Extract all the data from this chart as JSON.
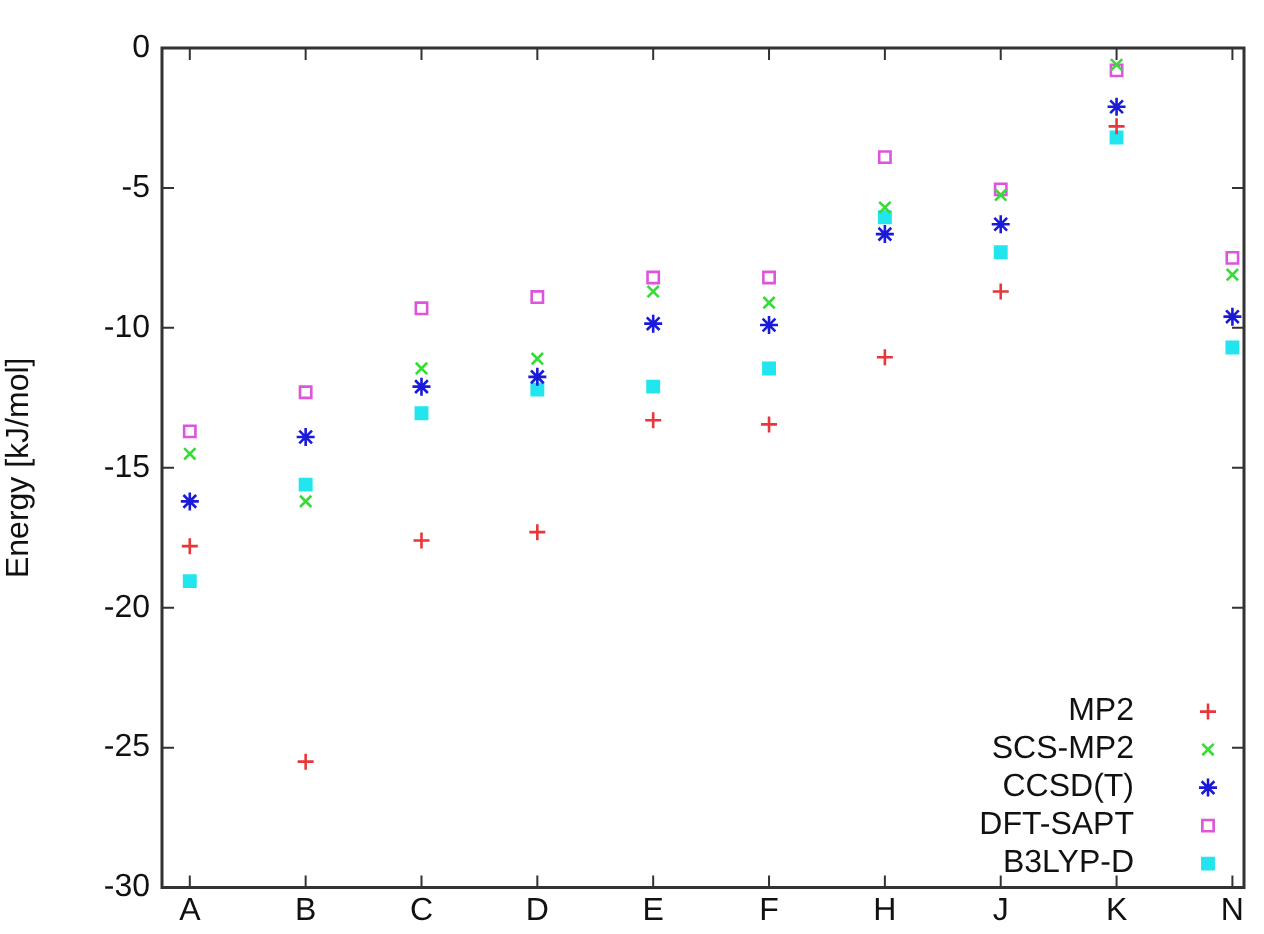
{
  "chart_data": {
    "type": "scatter",
    "ylabel": "Energy [kJ/mol]",
    "categories": [
      "A",
      "B",
      "C",
      "D",
      "E",
      "F",
      "H",
      "J",
      "K",
      "N"
    ],
    "ylim": [
      -30,
      0
    ],
    "yticks": [
      -30,
      -25,
      -20,
      -15,
      -10,
      -5,
      0
    ],
    "grid": false,
    "legend": "bottom right",
    "series": [
      {
        "name": "MP2",
        "color": "#e8373a",
        "marker": "cross",
        "values": [
          -17.8,
          -25.5,
          -17.6,
          -17.3,
          -13.3,
          -13.45,
          -11.05,
          -8.7,
          -2.8,
          null
        ]
      },
      {
        "name": "SCS-MP2",
        "color": "#33dd33",
        "marker": "x",
        "values": [
          -14.5,
          -16.2,
          -11.45,
          -11.1,
          -8.7,
          -9.1,
          -5.7,
          -5.25,
          -0.6,
          -8.1
        ]
      },
      {
        "name": "CCSD(T)",
        "color": "#1a1ad8",
        "values": [
          -16.2,
          -13.9,
          -12.1,
          -11.75,
          -9.85,
          -9.9,
          -6.65,
          -6.3,
          -2.1,
          -9.6
        ]
      },
      {
        "name": "DFT-SAPT",
        "color": "#dd55dd",
        "marker": "square-open",
        "values": [
          -13.7,
          -12.3,
          -9.3,
          -8.9,
          -8.2,
          -8.2,
          -3.9,
          -5.05,
          -0.8,
          -7.5
        ]
      },
      {
        "name": "B3LYP-D",
        "color": "#22e5ee",
        "marker": "square",
        "values": [
          -19.05,
          -15.6,
          -13.05,
          -12.2,
          -12.1,
          -11.45,
          -6.05,
          -7.3,
          -3.2,
          -10.7
        ]
      }
    ]
  }
}
